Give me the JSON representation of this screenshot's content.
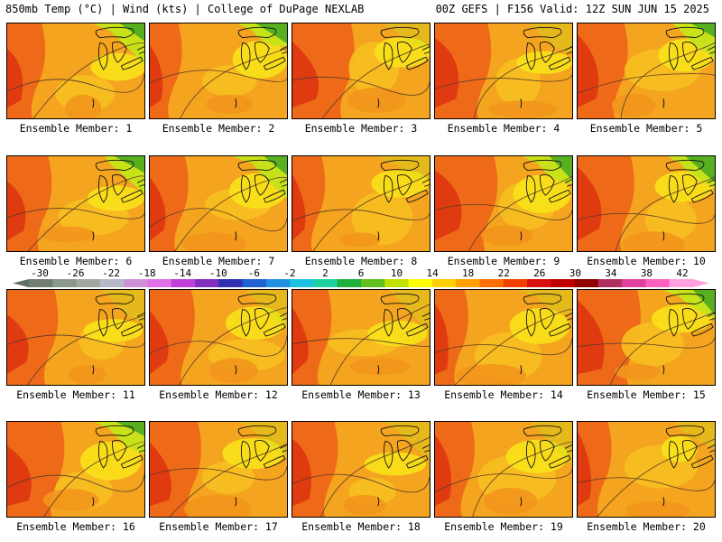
{
  "header": {
    "left": "850mb Temp (°C) | Wind (kts) | College of DuPage NEXLAB",
    "right": "00Z GEFS | F156 Valid: 12Z SUN JUN 15 2025"
  },
  "label_prefix": "Ensemble Member: ",
  "members": [
    {
      "n": 1,
      "label": "Ensemble Member: 1"
    },
    {
      "n": 2,
      "label": "Ensemble Member: 2"
    },
    {
      "n": 3,
      "label": "Ensemble Member: 3"
    },
    {
      "n": 4,
      "label": "Ensemble Member: 4"
    },
    {
      "n": 5,
      "label": "Ensemble Member: 5"
    },
    {
      "n": 6,
      "label": "Ensemble Member: 6"
    },
    {
      "n": 7,
      "label": "Ensemble Member: 7"
    },
    {
      "n": 8,
      "label": "Ensemble Member: 8"
    },
    {
      "n": 9,
      "label": "Ensemble Member: 9"
    },
    {
      "n": 10,
      "label": "Ensemble Member: 10"
    },
    {
      "n": 11,
      "label": "Ensemble Member: 11"
    },
    {
      "n": 12,
      "label": "Ensemble Member: 12"
    },
    {
      "n": 13,
      "label": "Ensemble Member: 13"
    },
    {
      "n": 14,
      "label": "Ensemble Member: 14"
    },
    {
      "n": 15,
      "label": "Ensemble Member: 15"
    },
    {
      "n": 16,
      "label": "Ensemble Member: 16"
    },
    {
      "n": 17,
      "label": "Ensemble Member: 17"
    },
    {
      "n": 18,
      "label": "Ensemble Member: 18"
    },
    {
      "n": 19,
      "label": "Ensemble Member: 19"
    },
    {
      "n": 20,
      "label": "Ensemble Member: 20"
    }
  ],
  "colorbar": {
    "ticks": [
      "-30",
      "-26",
      "-22",
      "-18",
      "-14",
      "-10",
      "-6",
      "-2",
      "2",
      "6",
      "10",
      "14",
      "18",
      "22",
      "26",
      "30",
      "34",
      "38",
      "42"
    ],
    "colors": [
      "#707f70",
      "#8a9a8a",
      "#a0a8a0",
      "#b8b8c8",
      "#d090d8",
      "#e070e8",
      "#c040d8",
      "#8030c0",
      "#3030b0",
      "#2060d0",
      "#2090e0",
      "#20c0e0",
      "#20d0a0",
      "#20b040",
      "#60c020",
      "#c0e000",
      "#ffff00",
      "#ffd000",
      "#ffa000",
      "#ff7000",
      "#f04000",
      "#d81010",
      "#c00000",
      "#900000",
      "#b03060",
      "#e040a0",
      "#ff60c0",
      "#ffa0e0"
    ]
  }
}
